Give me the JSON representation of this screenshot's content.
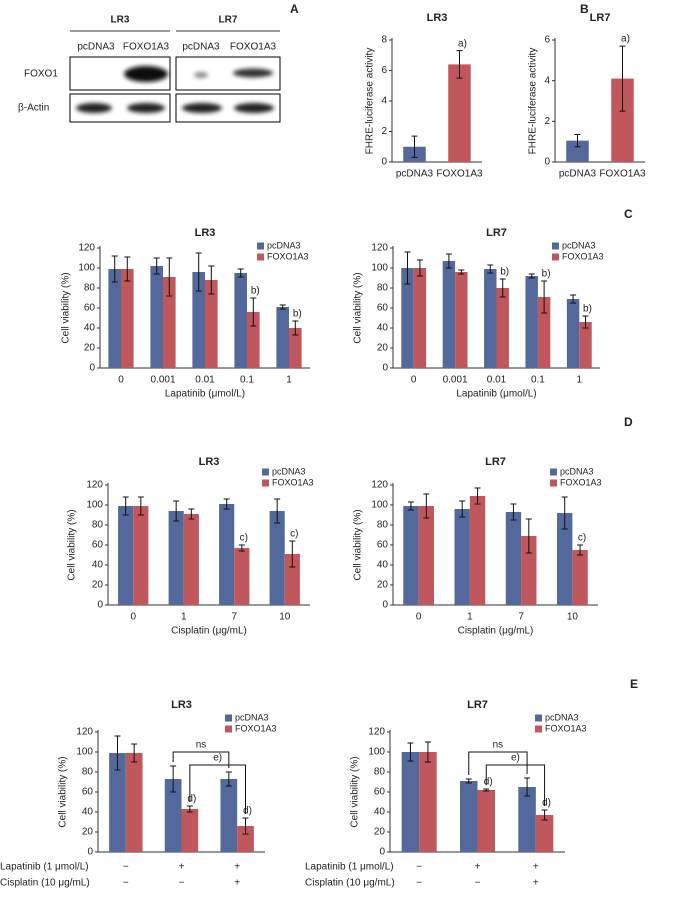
{
  "panel_labels": [
    "A",
    "B",
    "C",
    "D",
    "E"
  ],
  "blot": {
    "cell_lines": [
      "LR3",
      "LR7"
    ],
    "lanes": [
      "pcDNA3",
      "FOXO1A3",
      "pcDNA3",
      "FOXO1A3"
    ],
    "rows": [
      "FOXO1",
      "β-Actin"
    ]
  },
  "chart_data": [
    {
      "type": "bar",
      "title": "LR3",
      "y_label": "FHRE-luciferase activity",
      "categories": [
        "pcDNA3",
        "FOXO1A3"
      ],
      "values": [
        1.0,
        6.4
      ],
      "errors": [
        0.7,
        0.9
      ],
      "significance": [
        null,
        "a)"
      ],
      "colors": [
        "#53689b",
        "#c0575c"
      ],
      "ylim": [
        0,
        8
      ],
      "yticks": [
        0,
        2,
        4,
        6,
        8
      ]
    },
    {
      "type": "bar",
      "title": "LR7",
      "y_label": "FHRE-luciferase activity",
      "categories": [
        "pcDNA3",
        "FOXO1A3"
      ],
      "values": [
        1.05,
        4.1
      ],
      "errors": [
        0.3,
        1.6
      ],
      "significance": [
        null,
        "a)"
      ],
      "colors": [
        "#53689b",
        "#c0575c"
      ],
      "ylim": [
        0,
        6
      ],
      "yticks": [
        0,
        2,
        4,
        6
      ]
    },
    {
      "type": "bar",
      "title": "LR3",
      "y_label": "Cell viability (%)",
      "x_label": "Lapatinib (μmol/L)",
      "categories": [
        "0",
        "0.001",
        "0.01",
        "0.1",
        "1"
      ],
      "series": [
        {
          "name": "pcDNA3",
          "color": "#53689b",
          "values": [
            99,
            102,
            96,
            95,
            61
          ],
          "errors": [
            13,
            8,
            19,
            4,
            2
          ],
          "significance": [
            null,
            null,
            null,
            null,
            null
          ]
        },
        {
          "name": "FOXO1A3",
          "color": "#c0575c",
          "values": [
            99,
            91,
            88,
            56,
            40
          ],
          "errors": [
            12,
            19,
            14,
            14,
            7
          ],
          "significance": [
            null,
            null,
            null,
            "b)",
            "b)"
          ]
        }
      ],
      "ylim": [
        0,
        120
      ],
      "yticks": [
        0,
        20,
        40,
        60,
        80,
        100,
        120
      ],
      "legend": "upper right"
    },
    {
      "type": "bar",
      "title": "LR7",
      "y_label": "Cell viability (%)",
      "x_label": "Lapatinib (μmol/L)",
      "categories": [
        "0",
        "0.001",
        "0.01",
        "0.1",
        "1"
      ],
      "series": [
        {
          "name": "pcDNA3",
          "color": "#53689b",
          "values": [
            100,
            107,
            99,
            92,
            69
          ],
          "errors": [
            16,
            7,
            4,
            2,
            4
          ],
          "significance": [
            null,
            null,
            null,
            null,
            null
          ]
        },
        {
          "name": "FOXO1A3",
          "color": "#c0575c",
          "values": [
            100,
            96,
            80,
            71,
            46
          ],
          "errors": [
            8,
            2,
            9,
            16,
            6
          ],
          "significance": [
            null,
            null,
            "b)",
            "b)",
            "b)"
          ]
        }
      ],
      "ylim": [
        0,
        120
      ],
      "yticks": [
        0,
        20,
        40,
        60,
        80,
        100,
        120
      ],
      "legend": "upper right"
    },
    {
      "type": "bar",
      "title": "LR3",
      "y_label": "Cell viability (%)",
      "x_label": "Cisplatin (μg/mL)",
      "categories": [
        "0",
        "1",
        "7",
        "10"
      ],
      "series": [
        {
          "name": "pcDNA3",
          "color": "#53689b",
          "values": [
            99,
            94,
            101,
            94
          ],
          "errors": [
            9,
            10,
            5,
            12
          ],
          "significance": [
            null,
            null,
            null,
            null
          ]
        },
        {
          "name": "FOXO1A3",
          "color": "#c0575c",
          "values": [
            99,
            91,
            57,
            51
          ],
          "errors": [
            9,
            5,
            3,
            13
          ],
          "significance": [
            null,
            null,
            "c)",
            "c)"
          ]
        }
      ],
      "ylim": [
        0,
        120
      ],
      "yticks": [
        0,
        20,
        40,
        60,
        80,
        100,
        120
      ],
      "legend": "upper right"
    },
    {
      "type": "bar",
      "title": "LR7",
      "y_label": "Cell viability (%)",
      "x_label": "Cisplatin (μg/mL)",
      "categories": [
        "0",
        "1",
        "7",
        "10"
      ],
      "series": [
        {
          "name": "pcDNA3",
          "color": "#53689b",
          "values": [
            99,
            96,
            93,
            92
          ],
          "errors": [
            4,
            8,
            8,
            16
          ],
          "significance": [
            null,
            null,
            null,
            null
          ]
        },
        {
          "name": "FOXO1A3",
          "color": "#c0575c",
          "values": [
            99,
            109,
            69,
            55
          ],
          "errors": [
            12,
            8,
            17,
            5
          ],
          "significance": [
            null,
            null,
            null,
            "c)"
          ]
        }
      ],
      "ylim": [
        0,
        120
      ],
      "yticks": [
        0,
        20,
        40,
        60,
        80,
        100,
        120
      ],
      "legend": "upper right"
    },
    {
      "type": "bar",
      "title": "LR3",
      "y_label": "Cell viability (%)",
      "categories": [
        null,
        null,
        null
      ],
      "series": [
        {
          "name": "pcDNA3",
          "color": "#53689b",
          "values": [
            99,
            73,
            73
          ],
          "errors": [
            17,
            13,
            7
          ],
          "significance": [
            null,
            null,
            null
          ]
        },
        {
          "name": "FOXO1A3",
          "color": "#c0575c",
          "values": [
            99,
            43,
            26
          ],
          "errors": [
            9,
            3,
            8
          ],
          "significance": [
            null,
            "d)",
            "d)"
          ]
        }
      ],
      "comparisons": [
        {
          "label": "ns",
          "series": 0,
          "from": 1,
          "to": 2
        },
        {
          "label": "e)",
          "series": 1,
          "from": 1,
          "to": 2
        }
      ],
      "treatments": [
        {
          "label": "Lapatinib (1 μmol/L)",
          "marks": [
            "−",
            "+",
            "+"
          ]
        },
        {
          "label": "Cisplatin (10 μg/mL)",
          "marks": [
            "−",
            "−",
            "+"
          ]
        }
      ],
      "ylim": [
        0,
        120
      ],
      "yticks": [
        0,
        20,
        40,
        60,
        80,
        100,
        120
      ],
      "legend": "upper right"
    },
    {
      "type": "bar",
      "title": "LR7",
      "y_label": "Cell viability (%)",
      "categories": [
        null,
        null,
        null
      ],
      "series": [
        {
          "name": "pcDNA3",
          "color": "#53689b",
          "values": [
            100,
            71,
            65
          ],
          "errors": [
            9,
            2,
            9
          ],
          "significance": [
            null,
            null,
            null
          ]
        },
        {
          "name": "FOXO1A3",
          "color": "#c0575c",
          "values": [
            100,
            62,
            37
          ],
          "errors": [
            10,
            1,
            5
          ],
          "significance": [
            null,
            "d)",
            "d)"
          ]
        }
      ],
      "comparisons": [
        {
          "label": "ns",
          "series": 0,
          "from": 1,
          "to": 2
        },
        {
          "label": "e)",
          "series": 1,
          "from": 1,
          "to": 2
        }
      ],
      "treatments": [
        {
          "label": "Lapatinib (1 μmol/L)",
          "marks": [
            "−",
            "+",
            "+"
          ]
        },
        {
          "label": "Cisplatin (10 μg/mL)",
          "marks": [
            "−",
            "−",
            "+"
          ]
        }
      ],
      "ylim": [
        0,
        120
      ],
      "yticks": [
        0,
        20,
        40,
        60,
        80,
        100,
        120
      ],
      "legend": "upper right"
    }
  ]
}
